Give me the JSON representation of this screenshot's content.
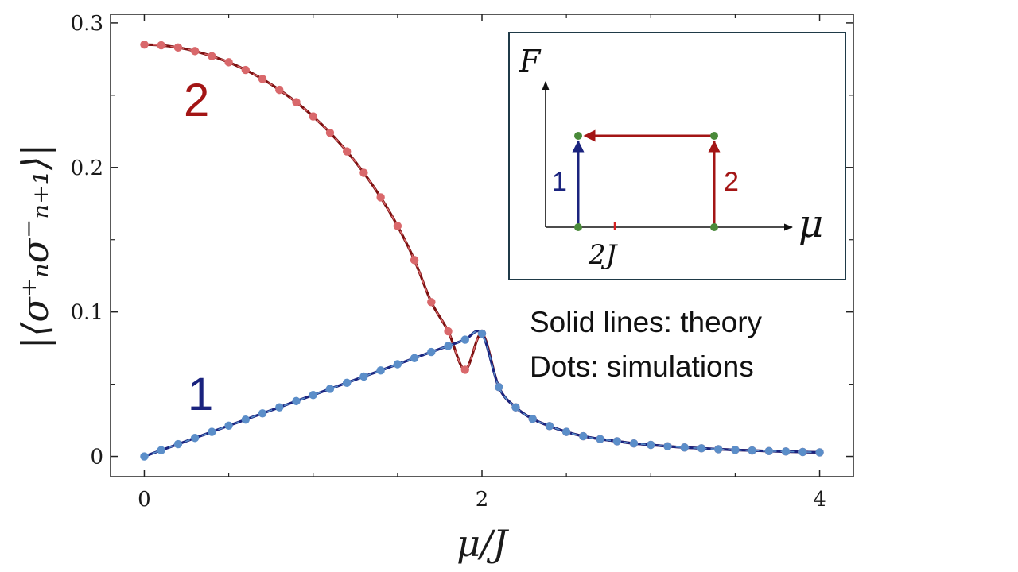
{
  "chart_data": {
    "type": "line",
    "xlabel": "μ/J",
    "ylabel": "|⟨σ⁺ₙσ⁻ₙ₊₁⟩|",
    "xlim": [
      -0.2,
      4.2
    ],
    "ylim": [
      -0.014,
      0.306
    ],
    "xticks": [
      0,
      2,
      4
    ],
    "xtick_labels": [
      "0",
      "2",
      "4"
    ],
    "yticks": [
      0,
      0.1,
      0.2,
      0.3
    ],
    "ytick_labels": [
      "0",
      "0.1",
      "0.2",
      "0.3"
    ],
    "grid": false,
    "series": [
      {
        "name": "1",
        "line_color": "#1a237e",
        "dot_color": "#5b8ec9",
        "x": [
          0,
          0.1,
          0.2,
          0.3,
          0.4,
          0.5,
          0.6,
          0.7,
          0.8,
          0.9,
          1.0,
          1.1,
          1.2,
          1.3,
          1.4,
          1.5,
          1.6,
          1.7,
          1.8,
          1.9,
          2.0,
          2.1,
          2.2,
          2.3,
          2.4,
          2.5,
          2.6,
          2.7,
          2.8,
          2.9,
          3.0,
          3.1,
          3.2,
          3.3,
          3.4,
          3.5,
          3.6,
          3.7,
          3.8,
          3.9,
          4.0
        ],
        "values": [
          0,
          0.0043,
          0.0085,
          0.0128,
          0.017,
          0.0213,
          0.0255,
          0.0298,
          0.034,
          0.0383,
          0.0425,
          0.0468,
          0.051,
          0.0553,
          0.0595,
          0.0638,
          0.068,
          0.0723,
          0.0765,
          0.0808,
          0.085,
          0.048,
          0.034,
          0.026,
          0.021,
          0.017,
          0.014,
          0.012,
          0.0105,
          0.009,
          0.008,
          0.007,
          0.0062,
          0.0056,
          0.005,
          0.0045,
          0.0041,
          0.0037,
          0.0034,
          0.0031,
          0.0028
        ]
      },
      {
        "name": "2",
        "line_color": "#7b0f0f",
        "dot_color": "#d9686b",
        "x": [
          0,
          0.1,
          0.2,
          0.3,
          0.4,
          0.5,
          0.6,
          0.7,
          0.8,
          0.9,
          1.0,
          1.1,
          1.2,
          1.3,
          1.4,
          1.5,
          1.6,
          1.7,
          1.8,
          1.9,
          2.0,
          2.1,
          2.2,
          2.3,
          2.4,
          2.5,
          2.6,
          2.7,
          2.8,
          2.9,
          3.0,
          3.1,
          3.2,
          3.3,
          3.4,
          3.5,
          3.6,
          3.7,
          3.8,
          3.9,
          4.0
        ],
        "values": [
          0.285,
          0.2845,
          0.283,
          0.2805,
          0.277,
          0.2728,
          0.2675,
          0.2612,
          0.2537,
          0.2452,
          0.2353,
          0.224,
          0.2111,
          0.1963,
          0.1793,
          0.1595,
          0.1359,
          0.1068,
          0.0866,
          0.06,
          0.085,
          0.048,
          0.034,
          0.026,
          0.021,
          0.017,
          0.014,
          0.012,
          0.0105,
          0.009,
          0.008,
          0.007,
          0.0062,
          0.0056,
          0.005,
          0.0045,
          0.0041,
          0.0037,
          0.0034,
          0.0031,
          0.0028
        ]
      }
    ],
    "curve_labels": [
      {
        "text": "2",
        "color": "#a31515"
      },
      {
        "text": "1",
        "color": "#1a237e"
      }
    ],
    "annotations": [
      "Solid lines: theory",
      "Dots: simulations"
    ],
    "inset": {
      "y_label": "F",
      "x_label": "μ",
      "tick_label": "2J",
      "arrow_1_label": "1",
      "arrow_2_label": "2",
      "arrow_1_color": "#1a237e",
      "arrow_2_color": "#a31515",
      "node_color": "#4a8a3a"
    }
  }
}
